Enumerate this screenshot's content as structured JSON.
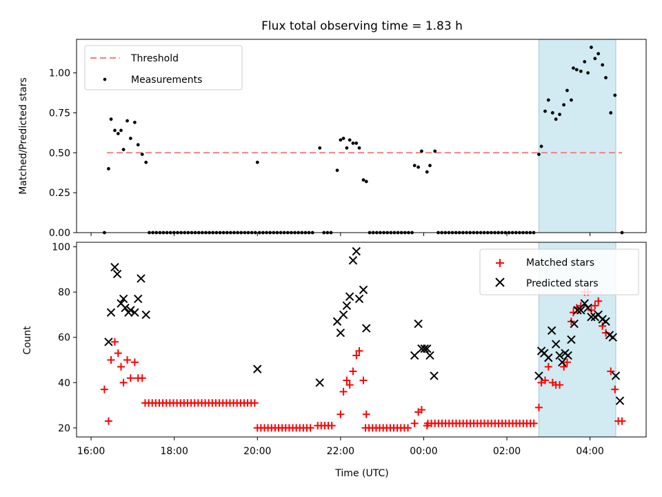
{
  "chart_data": [
    {
      "type": "scatter",
      "title": "Flux total observing time = 1.83 h",
      "xlabel": "",
      "ylabel": "Matched/Predicted stars",
      "ylim": [
        0.0,
        1.21
      ],
      "xlim_hours": [
        15.65,
        29.35
      ],
      "ytick_labels": [
        "0.00",
        "0.25",
        "0.50",
        "0.75",
        "1.00"
      ],
      "ytick_values": [
        0.0,
        0.25,
        0.5,
        0.75,
        1.0
      ],
      "legend": {
        "location": "upper left"
      },
      "threshold": {
        "name": "Threshold",
        "value": 0.5,
        "x_from": 16.38,
        "x_to": 28.77,
        "color": "#f08080"
      },
      "highlight_span": {
        "x_from": 26.77,
        "x_to": 28.62,
        "color": "#add8e6"
      },
      "measurements": {
        "name": "Measurements",
        "color": "#000000",
        "x": [
          16.32,
          16.42,
          16.48,
          16.57,
          16.65,
          16.72,
          16.78,
          16.87,
          16.95,
          17.05,
          17.13,
          17.23,
          17.32,
          20.0,
          21.5,
          21.92,
          22.0,
          22.07,
          22.15,
          22.22,
          22.3,
          22.38,
          22.45,
          22.55,
          22.62,
          23.78,
          23.87,
          23.95,
          24.08,
          24.15,
          24.27,
          26.77,
          26.83,
          26.92,
          27.0,
          27.1,
          27.18,
          27.27,
          27.37,
          27.45,
          27.55,
          27.6,
          27.68,
          27.78,
          27.87,
          27.95,
          28.03,
          28.12,
          28.2,
          28.3,
          28.38,
          28.5,
          28.6,
          28.77
        ],
        "y": [
          0.0,
          0.4,
          0.71,
          0.64,
          0.62,
          0.64,
          0.52,
          0.7,
          0.59,
          0.69,
          0.55,
          0.49,
          0.44,
          0.44,
          0.53,
          0.39,
          0.58,
          0.59,
          0.53,
          0.58,
          0.56,
          0.56,
          0.53,
          0.33,
          0.32,
          0.42,
          0.41,
          0.51,
          0.38,
          0.42,
          0.51,
          0.49,
          0.54,
          0.76,
          0.83,
          0.75,
          0.71,
          0.74,
          0.8,
          0.89,
          0.83,
          1.03,
          1.02,
          1.01,
          1.07,
          1.0,
          1.16,
          1.09,
          1.12,
          1.05,
          0.97,
          0.75,
          0.86,
          0.0
        ],
        "zero_runs": [
          [
            17.4,
            19.95
          ],
          [
            20.05,
            21.4
          ],
          [
            21.6,
            21.85
          ],
          [
            22.7,
            23.72
          ],
          [
            24.35,
            26.72
          ]
        ]
      }
    },
    {
      "type": "scatter",
      "title": "",
      "xlabel": "Time (UTC)",
      "ylabel": "Count",
      "ylim": [
        16,
        102
      ],
      "xlim_hours": [
        15.65,
        29.35
      ],
      "ytick_labels": [
        "20",
        "40",
        "60",
        "80",
        "100"
      ],
      "ytick_values": [
        20,
        40,
        60,
        80,
        100
      ],
      "xtick_labels": [
        "16:00",
        "18:00",
        "20:00",
        "22:00",
        "00:00",
        "02:00",
        "04:00"
      ],
      "xtick_hours": [
        16,
        18,
        20,
        22,
        24,
        26,
        28
      ],
      "legend": {
        "location": "upper right"
      },
      "highlight_span": {
        "x_from": 26.77,
        "x_to": 28.62,
        "color": "#add8e6"
      },
      "series": [
        {
          "name": "Matched stars",
          "marker": "plus",
          "color": "#ff0000",
          "x": [
            16.32,
            16.42,
            16.48,
            16.57,
            16.65,
            16.72,
            16.78,
            16.87,
            16.95,
            17.05,
            17.13,
            17.23,
            22.0,
            22.07,
            22.15,
            22.22,
            22.3,
            22.38,
            22.45,
            22.55,
            22.62,
            23.78,
            23.87,
            23.95,
            24.08,
            26.77,
            26.83,
            26.92,
            27.0,
            27.1,
            27.18,
            27.27,
            27.37,
            27.45,
            27.55,
            27.6,
            27.68,
            27.78,
            27.87,
            27.95,
            28.03,
            28.12,
            28.2,
            28.3,
            28.38,
            28.5,
            28.6,
            28.68,
            28.77
          ],
          "y": [
            37,
            23,
            50,
            58,
            53,
            47,
            40,
            50,
            42,
            49,
            42,
            42,
            26,
            36,
            41,
            39,
            45,
            52,
            54,
            41,
            26,
            22,
            27,
            28,
            21,
            29,
            40,
            41,
            47,
            40,
            39,
            39,
            47,
            49,
            67,
            71,
            73,
            74,
            80,
            80,
            72,
            74,
            76,
            65,
            62,
            45,
            37,
            23,
            23
          ],
          "flat_runs": [
            {
              "from": 17.3,
              "to": 19.95,
              "y": 31
            },
            {
              "from": 20.0,
              "to": 21.35,
              "y": 20
            },
            {
              "from": 21.45,
              "to": 21.85,
              "y": 21
            },
            {
              "from": 22.6,
              "to": 23.7,
              "y": 20
            },
            {
              "from": 24.1,
              "to": 26.72,
              "y": 22
            }
          ]
        },
        {
          "name": "Predicted stars",
          "marker": "x",
          "color": "#000000",
          "x": [
            16.42,
            16.48,
            16.57,
            16.63,
            16.72,
            16.78,
            16.82,
            16.9,
            16.95,
            17.05,
            17.13,
            17.2,
            17.32,
            20.0,
            21.5,
            21.92,
            22.0,
            22.07,
            22.15,
            22.22,
            22.3,
            22.38,
            22.45,
            22.55,
            22.62,
            23.78,
            23.87,
            23.95,
            24.02,
            24.08,
            24.15,
            24.25,
            26.77,
            26.83,
            26.9,
            27.0,
            27.08,
            27.18,
            27.27,
            27.33,
            27.4,
            27.47,
            27.55,
            27.62,
            27.7,
            27.78,
            27.87,
            27.95,
            28.03,
            28.12,
            28.2,
            28.3,
            28.38,
            28.47,
            28.55,
            28.62,
            28.72
          ],
          "y": [
            58,
            71,
            91,
            88,
            75,
            77,
            73,
            71,
            72,
            71,
            77,
            86,
            70,
            46,
            40,
            67,
            62,
            70,
            74,
            78,
            94,
            98,
            77,
            81,
            64,
            52,
            66,
            55,
            55,
            55,
            52,
            43,
            43,
            54,
            53,
            51,
            63,
            57,
            52,
            49,
            53,
            52,
            59,
            66,
            72,
            72,
            75,
            73,
            69,
            69,
            70,
            68,
            67,
            61,
            60,
            43,
            32
          ]
        }
      ]
    }
  ]
}
